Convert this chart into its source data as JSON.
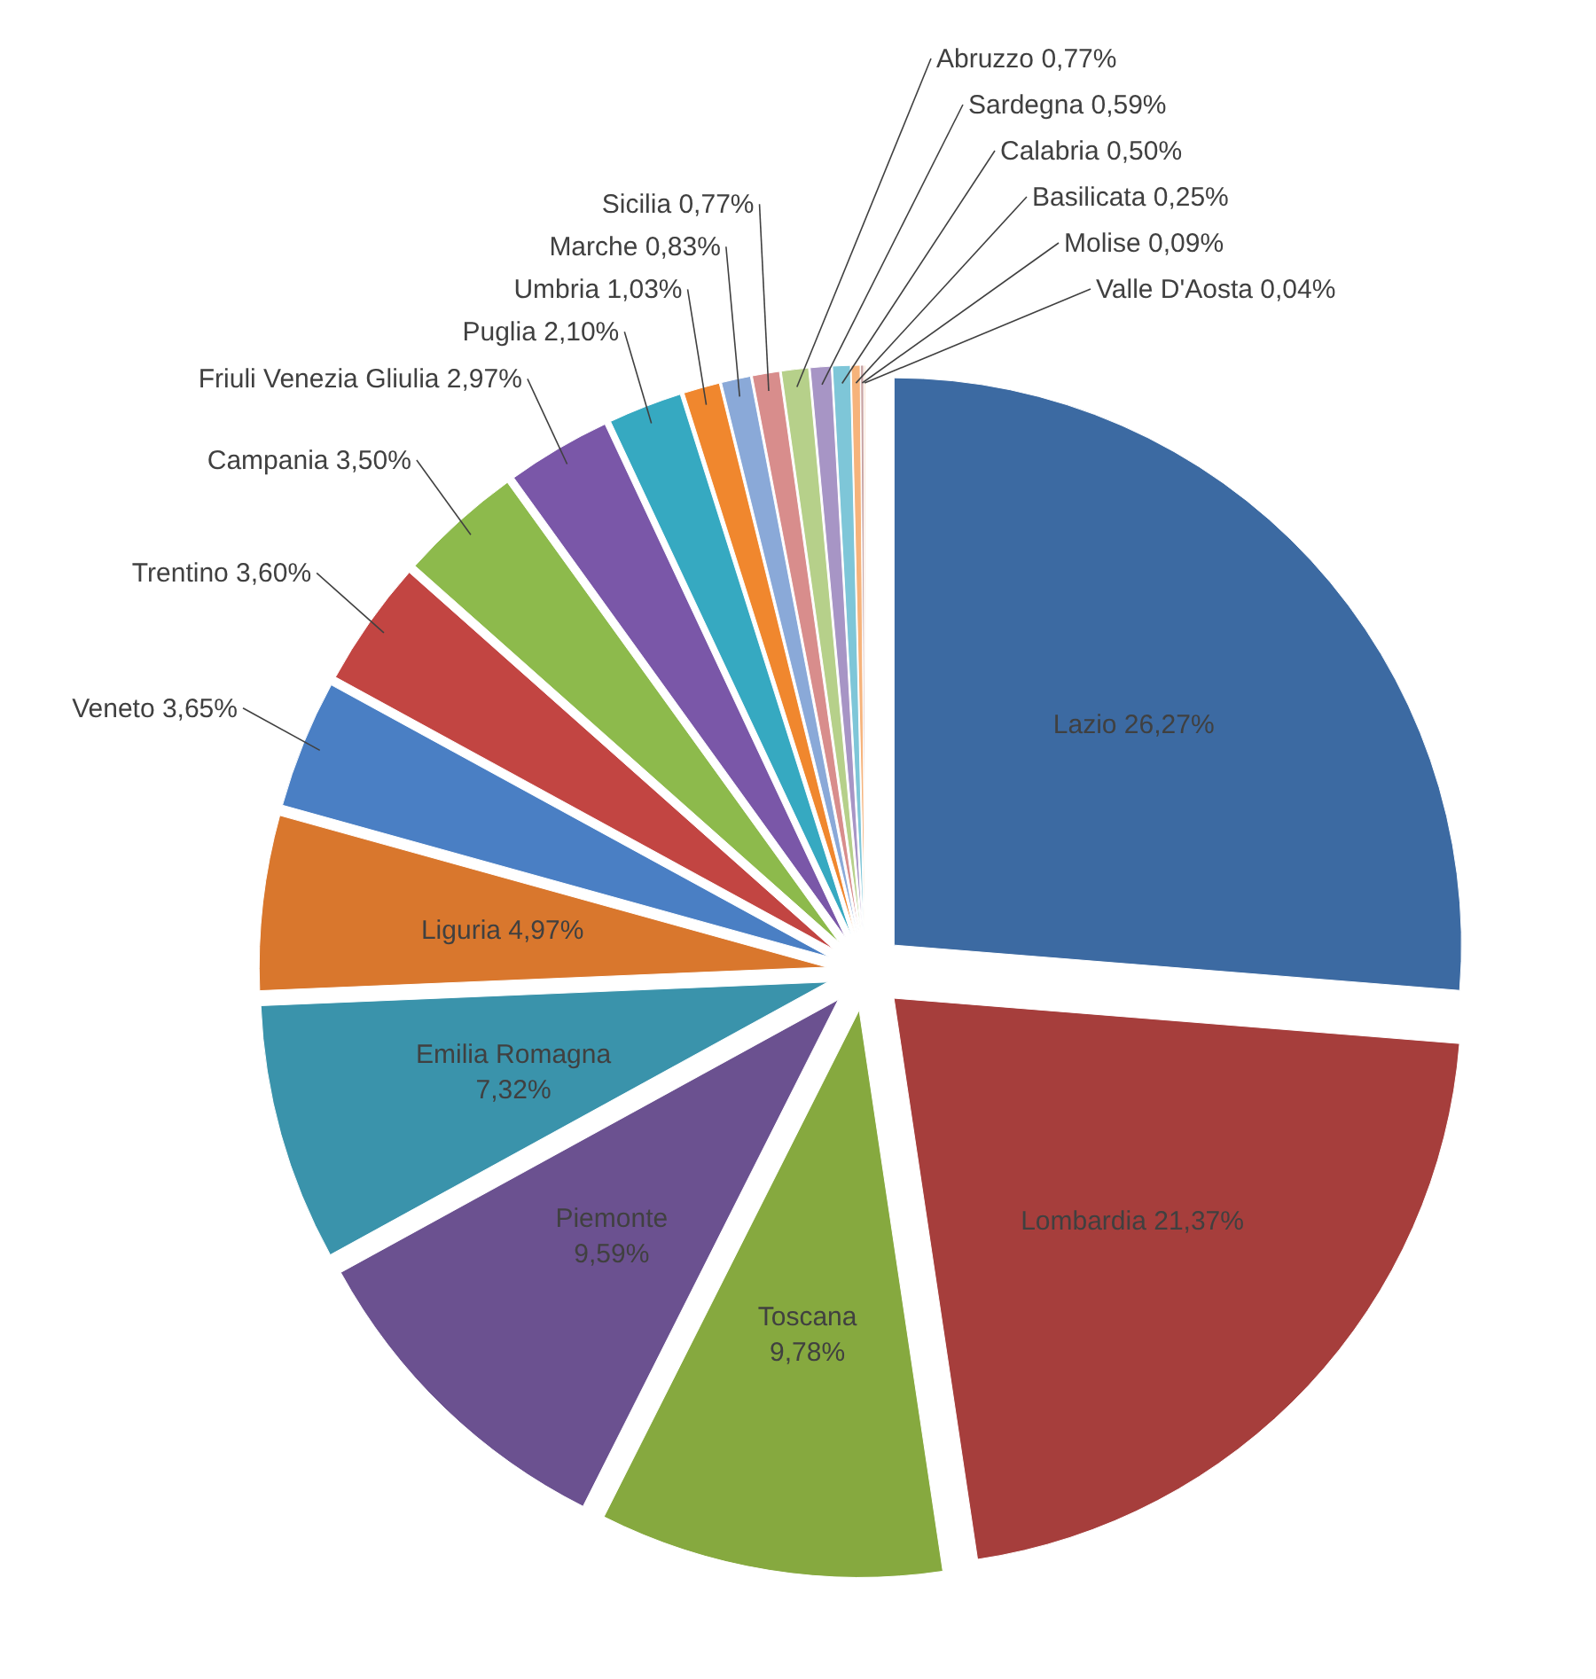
{
  "chart_data": {
    "type": "pie",
    "categories": [
      "Lazio",
      "Lombardia",
      "Toscana",
      "Piemonte",
      "Emilia Romagna",
      "Liguria",
      "Veneto",
      "Trentino",
      "Campania",
      "Friuli Venezia Gliulia",
      "Puglia",
      "Umbria",
      "Marche",
      "Sicilia",
      "Abruzzo",
      "Sardegna",
      "Calabria",
      "Basilicata",
      "Molise",
      "Valle D'Aosta"
    ],
    "values": [
      26.27,
      21.37,
      9.78,
      9.59,
      7.32,
      4.97,
      3.65,
      3.6,
      3.5,
      2.97,
      2.1,
      1.03,
      0.83,
      0.77,
      0.77,
      0.59,
      0.5,
      0.25,
      0.09,
      0.04
    ],
    "value_labels": [
      "26,27%",
      "21,37%",
      "9,78%",
      "9,59%",
      "7,32%",
      "4,97%",
      "3,65%",
      "3,60%",
      "3,50%",
      "2,97%",
      "2,10%",
      "1,03%",
      "0,83%",
      "0,77%",
      "0,77%",
      "0,59%",
      "0,50%",
      "0,25%",
      "0,09%",
      "0,04%"
    ],
    "colors": [
      "#3c6aa2",
      "#a63e3c",
      "#86a93f",
      "#6b5190",
      "#3a93ab",
      "#d9772d",
      "#4a7fc4",
      "#c24542",
      "#8dba4c",
      "#7a57a8",
      "#36a9c1",
      "#f0872e",
      "#8aa9d8",
      "#d88d8c",
      "#b6d08a",
      "#a795c5",
      "#7ec6d8",
      "#f6b37b",
      "#c9a6a6",
      "#f4c49a"
    ]
  }
}
